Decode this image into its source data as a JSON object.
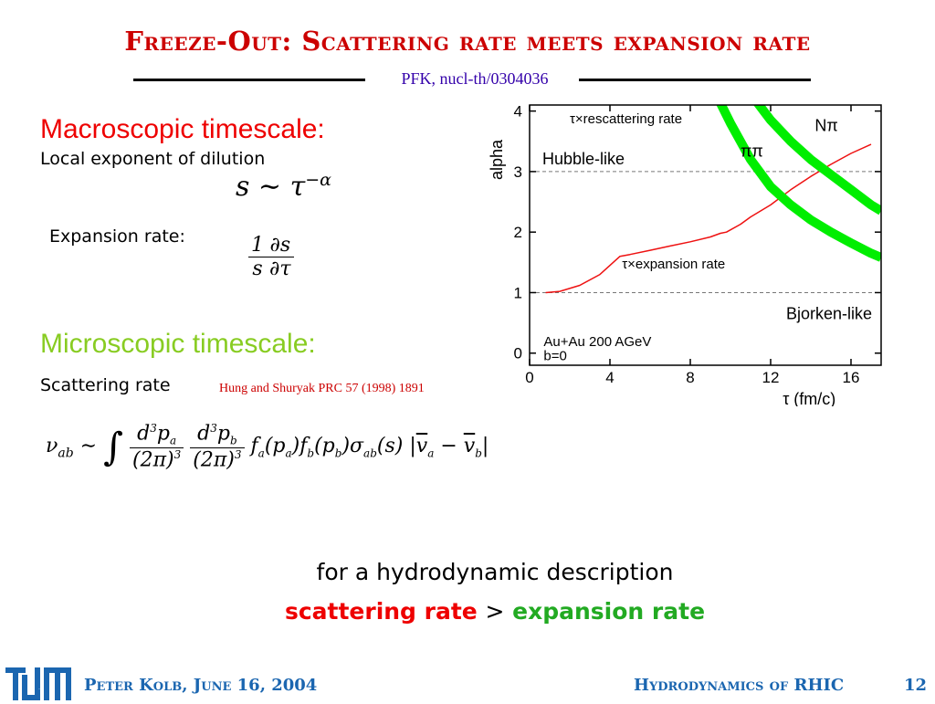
{
  "slide": {
    "title": "Freeze-Out: Scattering rate meets expansion rate",
    "reference": "PFK, nucl-th/0304036",
    "macro_heading": "Macroscopic timescale:",
    "macro_text": "Local exponent of dilution",
    "expansion_label": "Expansion rate:",
    "micro_heading": "Microscopic timescale:",
    "scattering_label": "Scattering rate",
    "citation": "Hung and Shuryak PRC 57 (1998) 1891",
    "conclusion_line1": "for a hydrodynamic description",
    "conclusion_scattering": "scattering rate",
    "conclusion_gt": ">",
    "conclusion_expansion": "expansion rate"
  },
  "footer": {
    "logo_text": "TUM",
    "author": "Peter Kolb, June 16, 2004",
    "talk": "Hydrodynamics of RHIC",
    "page": "12"
  },
  "colors": {
    "title": "#cc0000",
    "footer_text": "#1b66b0",
    "green_heading": "#88cc22",
    "expansion_green": "#22aa22",
    "curve_green": "#00ee00",
    "curve_red": "#ee1111"
  },
  "chart_data": {
    "type": "line",
    "xlabel": "τ (fm/c)",
    "ylabel": "alpha",
    "xlim": [
      0,
      17.5
    ],
    "ylim": [
      -0.2,
      4.1
    ],
    "x_ticks": [
      0,
      4,
      8,
      12,
      16
    ],
    "y_ticks": [
      0,
      1,
      2,
      3,
      4
    ],
    "reference_lines": [
      {
        "y": 3,
        "label": "Hubble-like"
      },
      {
        "y": 1,
        "label": "Bjorken-like"
      }
    ],
    "annotations": {
      "rescattering": "τ×rescattering rate",
      "expansion": "τ×expansion rate",
      "n_pi": "Nπ",
      "pi_pi": "ππ",
      "system": "Au+Au 200 AGeV",
      "impact": "b=0"
    },
    "series": [
      {
        "label": "τ×expansion rate",
        "x": [
          0.8,
          1.5,
          2.5,
          3.5,
          4.5,
          5,
          6,
          7,
          8,
          9,
          9.5,
          9.8,
          10.5,
          11,
          12,
          13,
          14,
          15,
          16,
          17
        ],
        "y": [
          1.0,
          1.02,
          1.12,
          1.3,
          1.6,
          1.63,
          1.7,
          1.77,
          1.84,
          1.92,
          1.98,
          2.0,
          2.13,
          2.25,
          2.45,
          2.7,
          2.92,
          3.12,
          3.3,
          3.45
        ]
      },
      {
        "label": "Nπ",
        "x": [
          11.2,
          12,
          13,
          14,
          15,
          16,
          17,
          17.5
        ],
        "y": [
          4.2,
          3.85,
          3.5,
          3.2,
          2.95,
          2.7,
          2.45,
          2.35
        ]
      },
      {
        "label": "ππ",
        "x": [
          9.4,
          10,
          11,
          12,
          13,
          14,
          15,
          16,
          17,
          17.5
        ],
        "y": [
          4.2,
          3.8,
          3.2,
          2.75,
          2.45,
          2.2,
          2.0,
          1.82,
          1.65,
          1.58
        ]
      }
    ]
  }
}
